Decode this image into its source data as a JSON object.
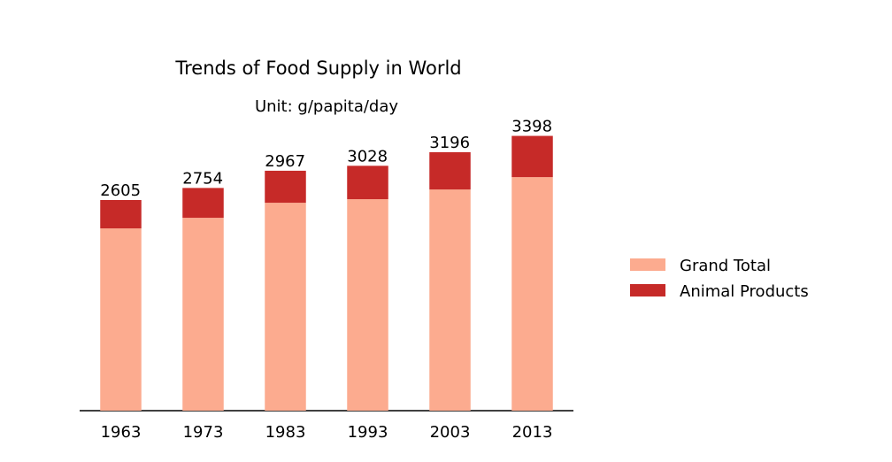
{
  "chart_data": {
    "type": "stacked-bar",
    "title": "Trends of Food Supply in World",
    "subtitle": "Unit: g/papita/day",
    "categories": [
      "1963",
      "1973",
      "1983",
      "1993",
      "2003",
      "2013"
    ],
    "series": [
      {
        "name": "Grand Total",
        "color": "#fcab8f",
        "values": [
          2254,
          2385,
          2571,
          2615,
          2735,
          2888
        ]
      },
      {
        "name": "Animal Products",
        "color": "#c62a28",
        "values": [
          351,
          369,
          396,
          413,
          461,
          510
        ]
      }
    ],
    "totals": [
      2605,
      2754,
      2967,
      3028,
      3196,
      3398
    ],
    "ylim": [
      0,
      3568
    ],
    "legend": "right"
  }
}
